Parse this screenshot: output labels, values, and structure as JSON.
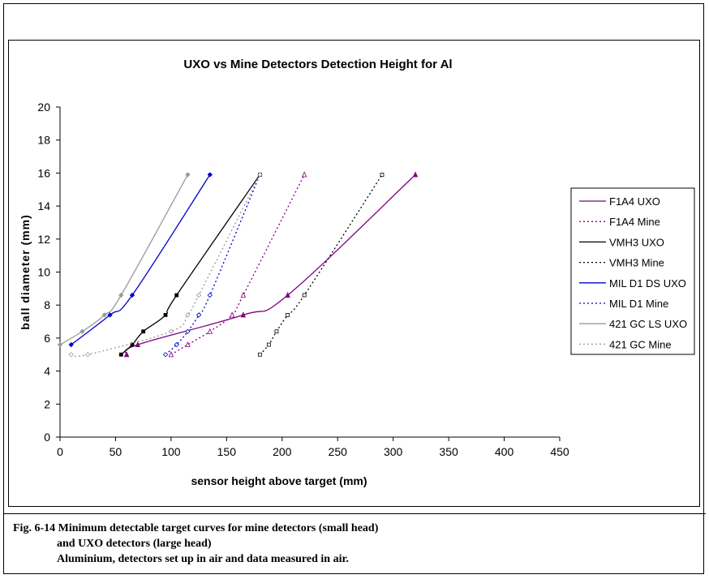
{
  "chart_data": {
    "type": "line",
    "title": "UXO vs Mine Detectors Detection Height for Al",
    "xlabel": "sensor height above target (mm)",
    "ylabel": "ball diameter (mm)",
    "xlim": [
      0,
      450
    ],
    "ylim": [
      0,
      20
    ],
    "xticks": [
      "0",
      "50",
      "100",
      "150",
      "200",
      "250",
      "300",
      "350",
      "400",
      "450"
    ],
    "yticks": [
      "0",
      "2",
      "4",
      "6",
      "8",
      "10",
      "12",
      "14",
      "16",
      "18",
      "20"
    ],
    "grid": false,
    "legend_position": "right",
    "series": [
      {
        "name": "F1A4 UXO",
        "color": "#800080",
        "dash": "solid",
        "marker": "triangle-filled",
        "x": [
          60,
          70,
          165,
          205,
          320
        ],
        "y": [
          5,
          5.6,
          7.4,
          8.6,
          15.9
        ]
      },
      {
        "name": "F1A4 Mine",
        "color": "#800080",
        "dash": "dotted",
        "marker": "triangle-open",
        "x": [
          100,
          115,
          135,
          155,
          165,
          220
        ],
        "y": [
          5,
          5.6,
          6.4,
          7.4,
          8.6,
          15.9
        ]
      },
      {
        "name": "VMH3 UXO",
        "color": "#000000",
        "dash": "solid",
        "marker": "square-filled",
        "x": [
          55,
          65,
          75,
          95,
          105,
          180
        ],
        "y": [
          5,
          5.6,
          6.4,
          7.4,
          8.6,
          15.9
        ]
      },
      {
        "name": "VMH3 Mine",
        "color": "#000000",
        "dash": "dotted",
        "marker": "square-open",
        "x": [
          180,
          188,
          195,
          205,
          220,
          290
        ],
        "y": [
          5,
          5.6,
          6.4,
          7.4,
          8.6,
          15.9
        ]
      },
      {
        "name": "MIL D1 DS UXO",
        "color": "#0000cc",
        "dash": "solid",
        "marker": "diamond-filled",
        "x": [
          10,
          45,
          65,
          135
        ],
        "y": [
          5.6,
          7.4,
          8.6,
          15.9
        ]
      },
      {
        "name": "MIL D1 Mine",
        "color": "#0000cc",
        "dash": "dotted",
        "marker": "diamond-open",
        "x": [
          95,
          105,
          115,
          125,
          135,
          180
        ],
        "y": [
          5,
          5.6,
          6.4,
          7.4,
          8.6,
          15.9
        ]
      },
      {
        "name": "421 GC LS UXO",
        "color": "#999999",
        "dash": "solid",
        "marker": "diamond-filled",
        "x": [
          0,
          20,
          40,
          55,
          115
        ],
        "y": [
          5.6,
          6.4,
          7.4,
          8.6,
          15.9
        ]
      },
      {
        "name": "421 GC Mine",
        "color": "#999999",
        "dash": "dotted",
        "marker": "diamond-open",
        "x": [
          10,
          25,
          100,
          115,
          125,
          180
        ],
        "y": [
          5,
          5,
          6.4,
          7.4,
          8.6,
          15.9
        ]
      }
    ]
  },
  "caption": {
    "line1": "Fig. 6-14 Minimum detectable target curves for mine detectors (small head)",
    "line2": "and UXO detectors (large head)",
    "line3": "Aluminium, detectors set up in air and data measured in air."
  }
}
